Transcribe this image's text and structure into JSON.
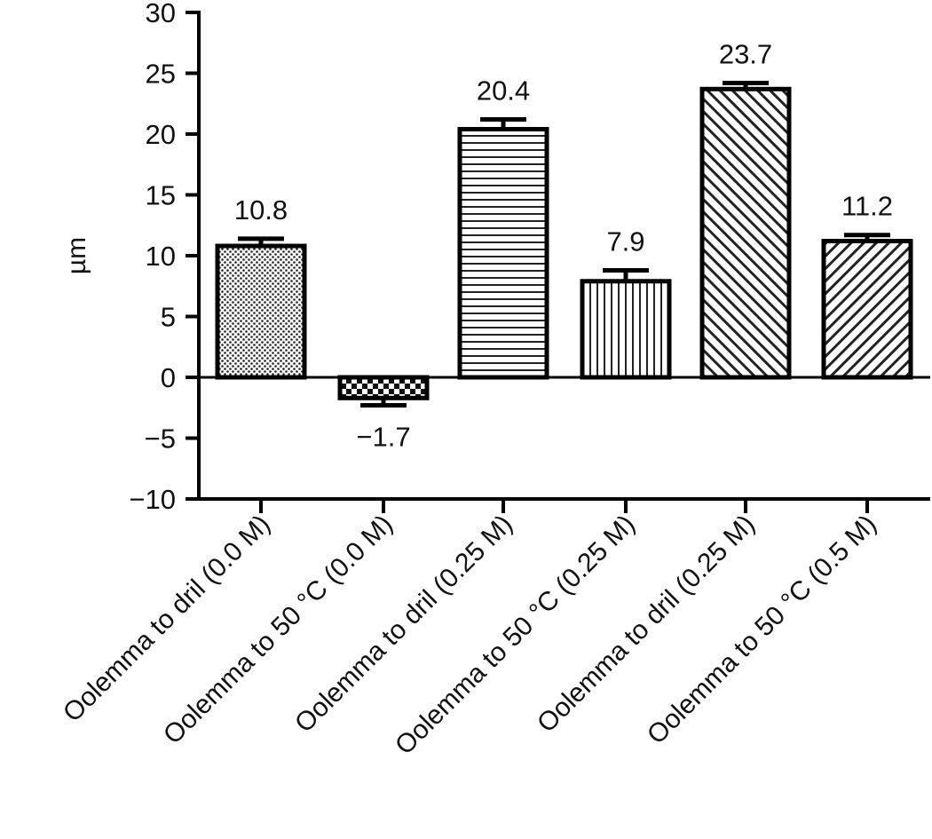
{
  "chart_data": {
    "type": "bar",
    "title": "",
    "xlabel": "",
    "ylabel": "µm",
    "ylim": [
      -10,
      30
    ],
    "yticks": [
      30,
      25,
      20,
      15,
      10,
      5,
      0,
      -5,
      -10
    ],
    "ytick_labels": [
      "30",
      "25",
      "20",
      "15",
      "10",
      "5",
      "0",
      "−5",
      "−10"
    ],
    "grid": false,
    "legend": "none",
    "categories": [
      "Oolemma to dril (0.0 M)",
      "Oolemma to 50 °C (0.0 M)",
      "Oolemma to dril (0.25 M)",
      "Oolemma to 50 °C (0.25 M)",
      "Oolemma to dril (0.25 M)",
      "Oolemma to 50 °C (0.5 M)"
    ],
    "values": [
      10.8,
      -1.7,
      20.4,
      7.9,
      23.7,
      11.2
    ],
    "errors": [
      0.6,
      0.6,
      0.8,
      0.9,
      0.5,
      0.5
    ],
    "data_labels": [
      "10.8",
      "−1.7",
      "20.4",
      "7.9",
      "23.7",
      "11.2"
    ],
    "patterns": [
      "dots",
      "checker",
      "horizontal",
      "vertical",
      "diagonal-up",
      "diagonal-down"
    ]
  }
}
